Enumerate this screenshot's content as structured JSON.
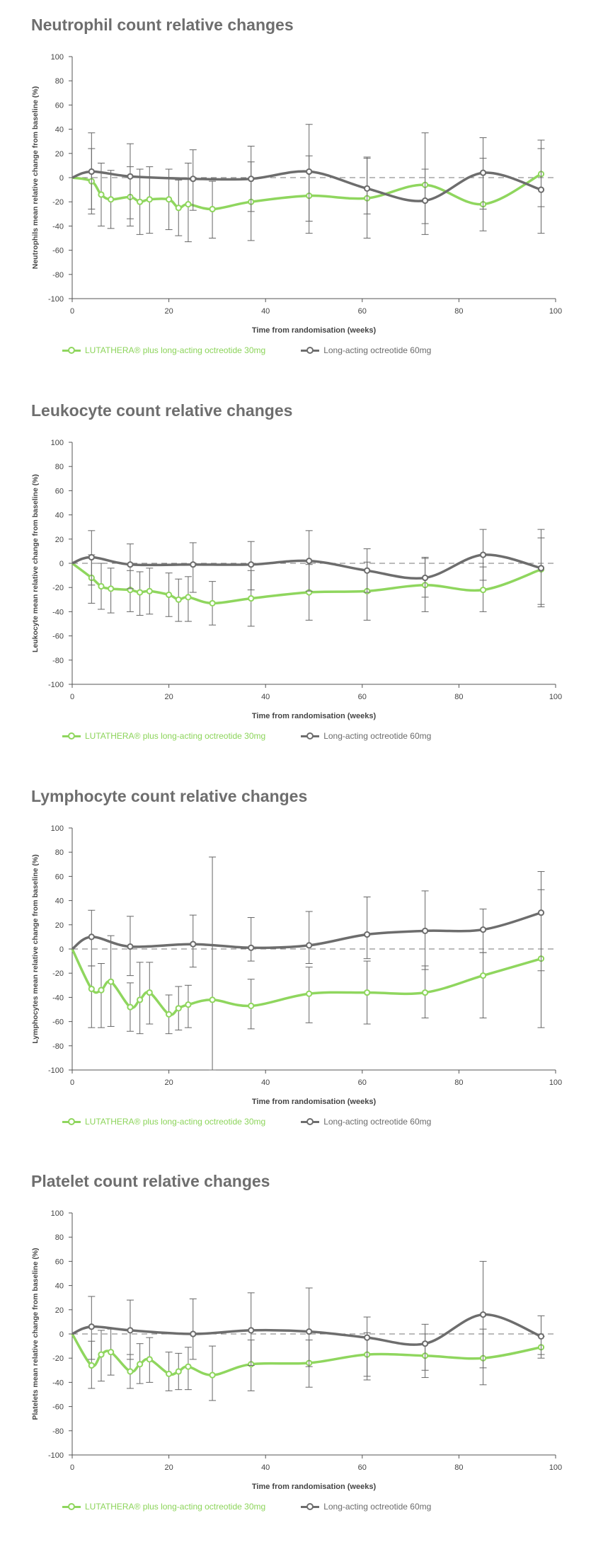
{
  "colors": {
    "green": "#8fd65e",
    "grey": "#6d6d6d",
    "title": "#6e6e6e",
    "axis": "#555555"
  },
  "chart_data": [
    {
      "type": "line",
      "title": "Neutrophil count relative changes",
      "xlabel": "Time from randomisation (weeks)",
      "ylabel": "Neutrophils mean relative change from baseline (%)",
      "xlim": [
        0,
        100
      ],
      "ylim": [
        -100,
        100
      ],
      "xticks": [
        0,
        20,
        40,
        60,
        80,
        100
      ],
      "yticks": [
        -100,
        -80,
        -60,
        -40,
        -20,
        0,
        20,
        40,
        60,
        80,
        100
      ],
      "reference_line": 0,
      "legend_position": "bottom",
      "series": [
        {
          "name": "LUTATHERA® plus long-acting octreotide 30mg",
          "color": "green",
          "x": [
            0,
            4,
            6,
            8,
            12,
            14,
            16,
            20,
            22,
            24,
            29,
            37,
            49,
            61,
            73,
            85,
            97
          ],
          "y": [
            0,
            -3,
            -14,
            -18,
            -16,
            -20,
            -18,
            -18,
            -25,
            -22,
            -26,
            -20,
            -15,
            -17,
            -6,
            -22,
            3
          ],
          "err_low": [
            0,
            -30,
            -40,
            -42,
            -40,
            -47,
            -46,
            -43,
            -48,
            -53,
            -50,
            -52,
            -46,
            -50,
            -38,
            -44,
            -24
          ],
          "err_high": [
            0,
            24,
            12,
            6,
            9,
            7,
            9,
            7,
            -2,
            12,
            -3,
            13,
            18,
            16,
            37,
            16,
            31
          ]
        },
        {
          "name": "Long-acting octreotide 60mg",
          "color": "grey",
          "x": [
            0,
            4,
            12,
            25,
            37,
            49,
            61,
            73,
            85,
            97
          ],
          "y": [
            0,
            5,
            1,
            -1,
            -1,
            5,
            -9,
            -19,
            4,
            -10
          ],
          "err_low": [
            0,
            -26,
            -34,
            -27,
            -28,
            -36,
            -30,
            -47,
            -26,
            -46
          ],
          "err_high": [
            0,
            37,
            28,
            23,
            26,
            44,
            17,
            7,
            33,
            24
          ]
        }
      ]
    },
    {
      "type": "line",
      "title": "Leukocyte count relative changes",
      "xlabel": "Time from randomisation (weeks)",
      "ylabel": "Leukocyte mean relative change from baseline (%)",
      "xlim": [
        0,
        100
      ],
      "ylim": [
        -100,
        100
      ],
      "xticks": [
        0,
        20,
        40,
        60,
        80,
        100
      ],
      "yticks": [
        -100,
        -80,
        -60,
        -40,
        -20,
        0,
        20,
        40,
        60,
        80,
        100
      ],
      "reference_line": 0,
      "legend_position": "bottom",
      "series": [
        {
          "name": "LUTATHERA® plus long-acting octreotide 30mg",
          "color": "green",
          "x": [
            0,
            4,
            6,
            8,
            12,
            14,
            16,
            20,
            22,
            24,
            29,
            37,
            49,
            61,
            73,
            85,
            97
          ],
          "y": [
            0,
            -12,
            -19,
            -21,
            -22,
            -24,
            -23,
            -26,
            -30,
            -28,
            -33,
            -29,
            -24,
            -23,
            -18,
            -22,
            -5
          ],
          "err_low": [
            0,
            -33,
            -38,
            -41,
            -40,
            -43,
            -42,
            -44,
            -48,
            -48,
            -51,
            -52,
            -47,
            -47,
            -40,
            -40,
            -36
          ],
          "err_high": [
            0,
            7,
            0,
            -4,
            -6,
            -7,
            -4,
            -8,
            -13,
            -11,
            -15,
            -6,
            -1,
            1,
            4,
            -3,
            21
          ]
        },
        {
          "name": "Long-acting octreotide 60mg",
          "color": "grey",
          "x": [
            0,
            4,
            12,
            25,
            37,
            49,
            61,
            73,
            85,
            97
          ],
          "y": [
            0,
            5,
            -1,
            -1,
            -1,
            2,
            -6,
            -12,
            7,
            -4
          ],
          "err_low": [
            0,
            -18,
            -21,
            -24,
            -22,
            -23,
            -24,
            -28,
            -14,
            -34
          ],
          "err_high": [
            0,
            27,
            16,
            17,
            18,
            27,
            12,
            5,
            28,
            28
          ]
        }
      ]
    },
    {
      "type": "line",
      "title": "Lymphocyte count relative changes",
      "xlabel": "Time from randomisation (weeks)",
      "ylabel": "Lymphocytes mean relative change from baseline (%)",
      "xlim": [
        0,
        100
      ],
      "ylim": [
        -100,
        100
      ],
      "xticks": [
        0,
        20,
        40,
        60,
        80,
        100
      ],
      "yticks": [
        -100,
        -80,
        -60,
        -40,
        -20,
        0,
        20,
        40,
        60,
        80,
        100
      ],
      "reference_line": 0,
      "legend_position": "bottom",
      "series": [
        {
          "name": "LUTATHERA® plus long-acting octreotide 30mg",
          "color": "green",
          "x": [
            0,
            4,
            6,
            8,
            12,
            14,
            16,
            20,
            22,
            24,
            29,
            37,
            49,
            61,
            73,
            85,
            97
          ],
          "y": [
            0,
            -33,
            -34,
            -27,
            -48,
            -42,
            -36,
            -54,
            -49,
            -46,
            -42,
            -47,
            -37,
            -36,
            -36,
            -22,
            -8
          ],
          "err_low": [
            0,
            -65,
            -65,
            -64,
            -68,
            -70,
            -62,
            -70,
            -67,
            -65,
            -100,
            -66,
            -61,
            -62,
            -57,
            -57,
            -65
          ],
          "err_high": [
            0,
            -14,
            -12,
            11,
            -28,
            -11,
            -11,
            -38,
            -31,
            -30,
            76,
            -25,
            -15,
            -10,
            -14,
            -3,
            49
          ]
        },
        {
          "name": "Long-acting octreotide 60mg",
          "color": "grey",
          "x": [
            0,
            4,
            12,
            25,
            37,
            49,
            61,
            73,
            85,
            97
          ],
          "y": [
            0,
            10,
            2,
            4,
            1,
            3,
            12,
            15,
            16,
            30
          ],
          "err_low": [
            0,
            -14,
            -22,
            -15,
            -10,
            -12,
            -8,
            -17,
            -3,
            -18
          ],
          "err_high": [
            0,
            32,
            27,
            28,
            26,
            31,
            43,
            48,
            33,
            64
          ]
        }
      ]
    },
    {
      "type": "line",
      "title": "Platelet count relative changes",
      "xlabel": "Time from randomisation (weeks)",
      "ylabel": "Platelets mean relative change from baseline (%)",
      "xlim": [
        0,
        100
      ],
      "ylim": [
        -100,
        100
      ],
      "xticks": [
        0,
        20,
        40,
        60,
        80,
        100
      ],
      "yticks": [
        -100,
        -80,
        -60,
        -40,
        -20,
        0,
        20,
        40,
        60,
        80,
        100
      ],
      "reference_line": 0,
      "legend_position": "bottom",
      "series": [
        {
          "name": "LUTATHERA® plus long-acting octreotide 30mg",
          "color": "green",
          "x": [
            0,
            4,
            6,
            8,
            12,
            14,
            16,
            20,
            22,
            24,
            29,
            37,
            49,
            61,
            73,
            85,
            97
          ],
          "y": [
            0,
            -26,
            -17,
            -15,
            -31,
            -25,
            -21,
            -33,
            -31,
            -27,
            -34,
            -25,
            -24,
            -17,
            -18,
            -20,
            -11
          ],
          "err_low": [
            0,
            -45,
            -39,
            -34,
            -45,
            -41,
            -40,
            -47,
            -46,
            -46,
            -55,
            -47,
            -44,
            -35,
            -36,
            -42,
            -20
          ],
          "err_high": [
            0,
            -6,
            3,
            4,
            -17,
            -8,
            -3,
            -15,
            -16,
            -11,
            -10,
            -5,
            -5,
            1,
            0,
            4,
            -2
          ]
        },
        {
          "name": "Long-acting octreotide 60mg",
          "color": "grey",
          "x": [
            0,
            4,
            12,
            25,
            37,
            49,
            61,
            73,
            85,
            97
          ],
          "y": [
            0,
            6,
            3,
            0,
            3,
            2,
            -3,
            -8,
            16,
            -2
          ],
          "err_low": [
            0,
            -21,
            -21,
            -21,
            -26,
            -27,
            -38,
            -30,
            -28,
            -17
          ],
          "err_high": [
            0,
            31,
            28,
            29,
            34,
            38,
            14,
            8,
            60,
            15
          ]
        }
      ]
    }
  ]
}
